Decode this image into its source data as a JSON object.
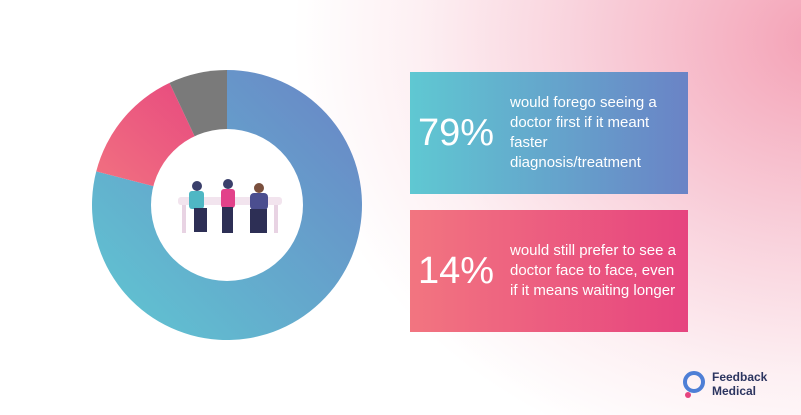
{
  "chart_data": {
    "type": "donut",
    "categories": [
      "would forego seeing a doctor first if it meant faster diagnosis/treatment",
      "would still prefer to see a doctor face to face, even if it means waiting longer",
      null
    ],
    "values": [
      79,
      14,
      7
    ],
    "value_labels": [
      "79%",
      "14%",
      null
    ],
    "colors": [
      [
        "#5fc8d2",
        "#6a83c6"
      ],
      [
        "#f27580",
        "#e6447f"
      ],
      [
        "#7a7a7a",
        "#7a7a7a"
      ]
    ]
  },
  "logo": {
    "line1": "Feedback",
    "line2": "Medical"
  }
}
